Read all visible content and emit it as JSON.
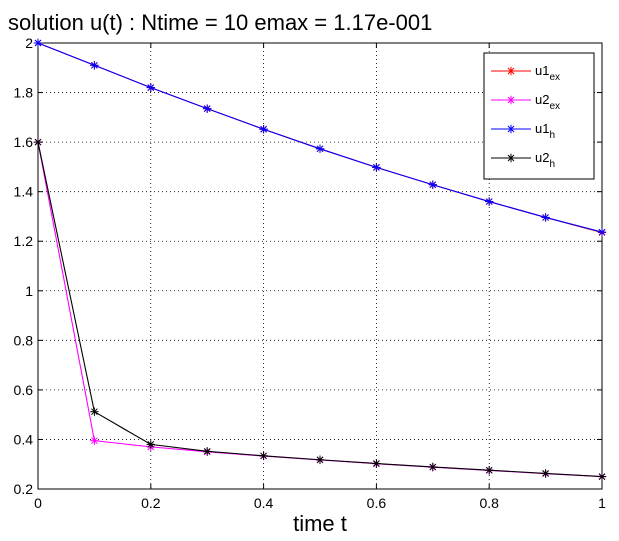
{
  "chart_data": {
    "type": "line",
    "title": "solution u(t) :   Ntime =   10   emax =  1.17e-001",
    "xlabel": "time t",
    "ylabel": "",
    "xlim": [
      0,
      1
    ],
    "ylim": [
      0.2,
      2
    ],
    "x_ticks": [
      "0",
      "0.2",
      "0.4",
      "0.6",
      "0.8",
      "1"
    ],
    "y_ticks": [
      "0.2",
      "0.4",
      "0.6",
      "0.8",
      "1",
      "1.2",
      "1.4",
      "1.6",
      "1.8",
      "2"
    ],
    "grid": true,
    "legend_position": "top-right",
    "x": [
      0,
      0.1,
      0.2,
      0.3,
      0.4,
      0.5,
      0.6,
      0.7,
      0.8,
      0.9,
      1.0
    ],
    "series": [
      {
        "name": "u1",
        "subscript": "ex",
        "color": "#ff0000",
        "values": [
          2.0,
          1.91,
          1.82,
          1.735,
          1.652,
          1.573,
          1.498,
          1.428,
          1.36,
          1.296,
          1.235
        ]
      },
      {
        "name": "u2",
        "subscript": "ex",
        "color": "#ff00ff",
        "values": [
          1.6,
          0.395,
          0.37,
          0.35,
          0.333,
          0.317,
          0.302,
          0.288,
          0.275,
          0.262,
          0.25
        ]
      },
      {
        "name": "u1",
        "subscript": "h",
        "color": "#0000ff",
        "values": [
          2.0,
          1.91,
          1.82,
          1.735,
          1.652,
          1.573,
          1.498,
          1.428,
          1.36,
          1.296,
          1.237
        ]
      },
      {
        "name": "u2",
        "subscript": "h",
        "color": "#000000",
        "values": [
          1.6,
          0.512,
          0.38,
          0.352,
          0.334,
          0.318,
          0.303,
          0.289,
          0.276,
          0.263,
          0.25
        ]
      }
    ]
  }
}
